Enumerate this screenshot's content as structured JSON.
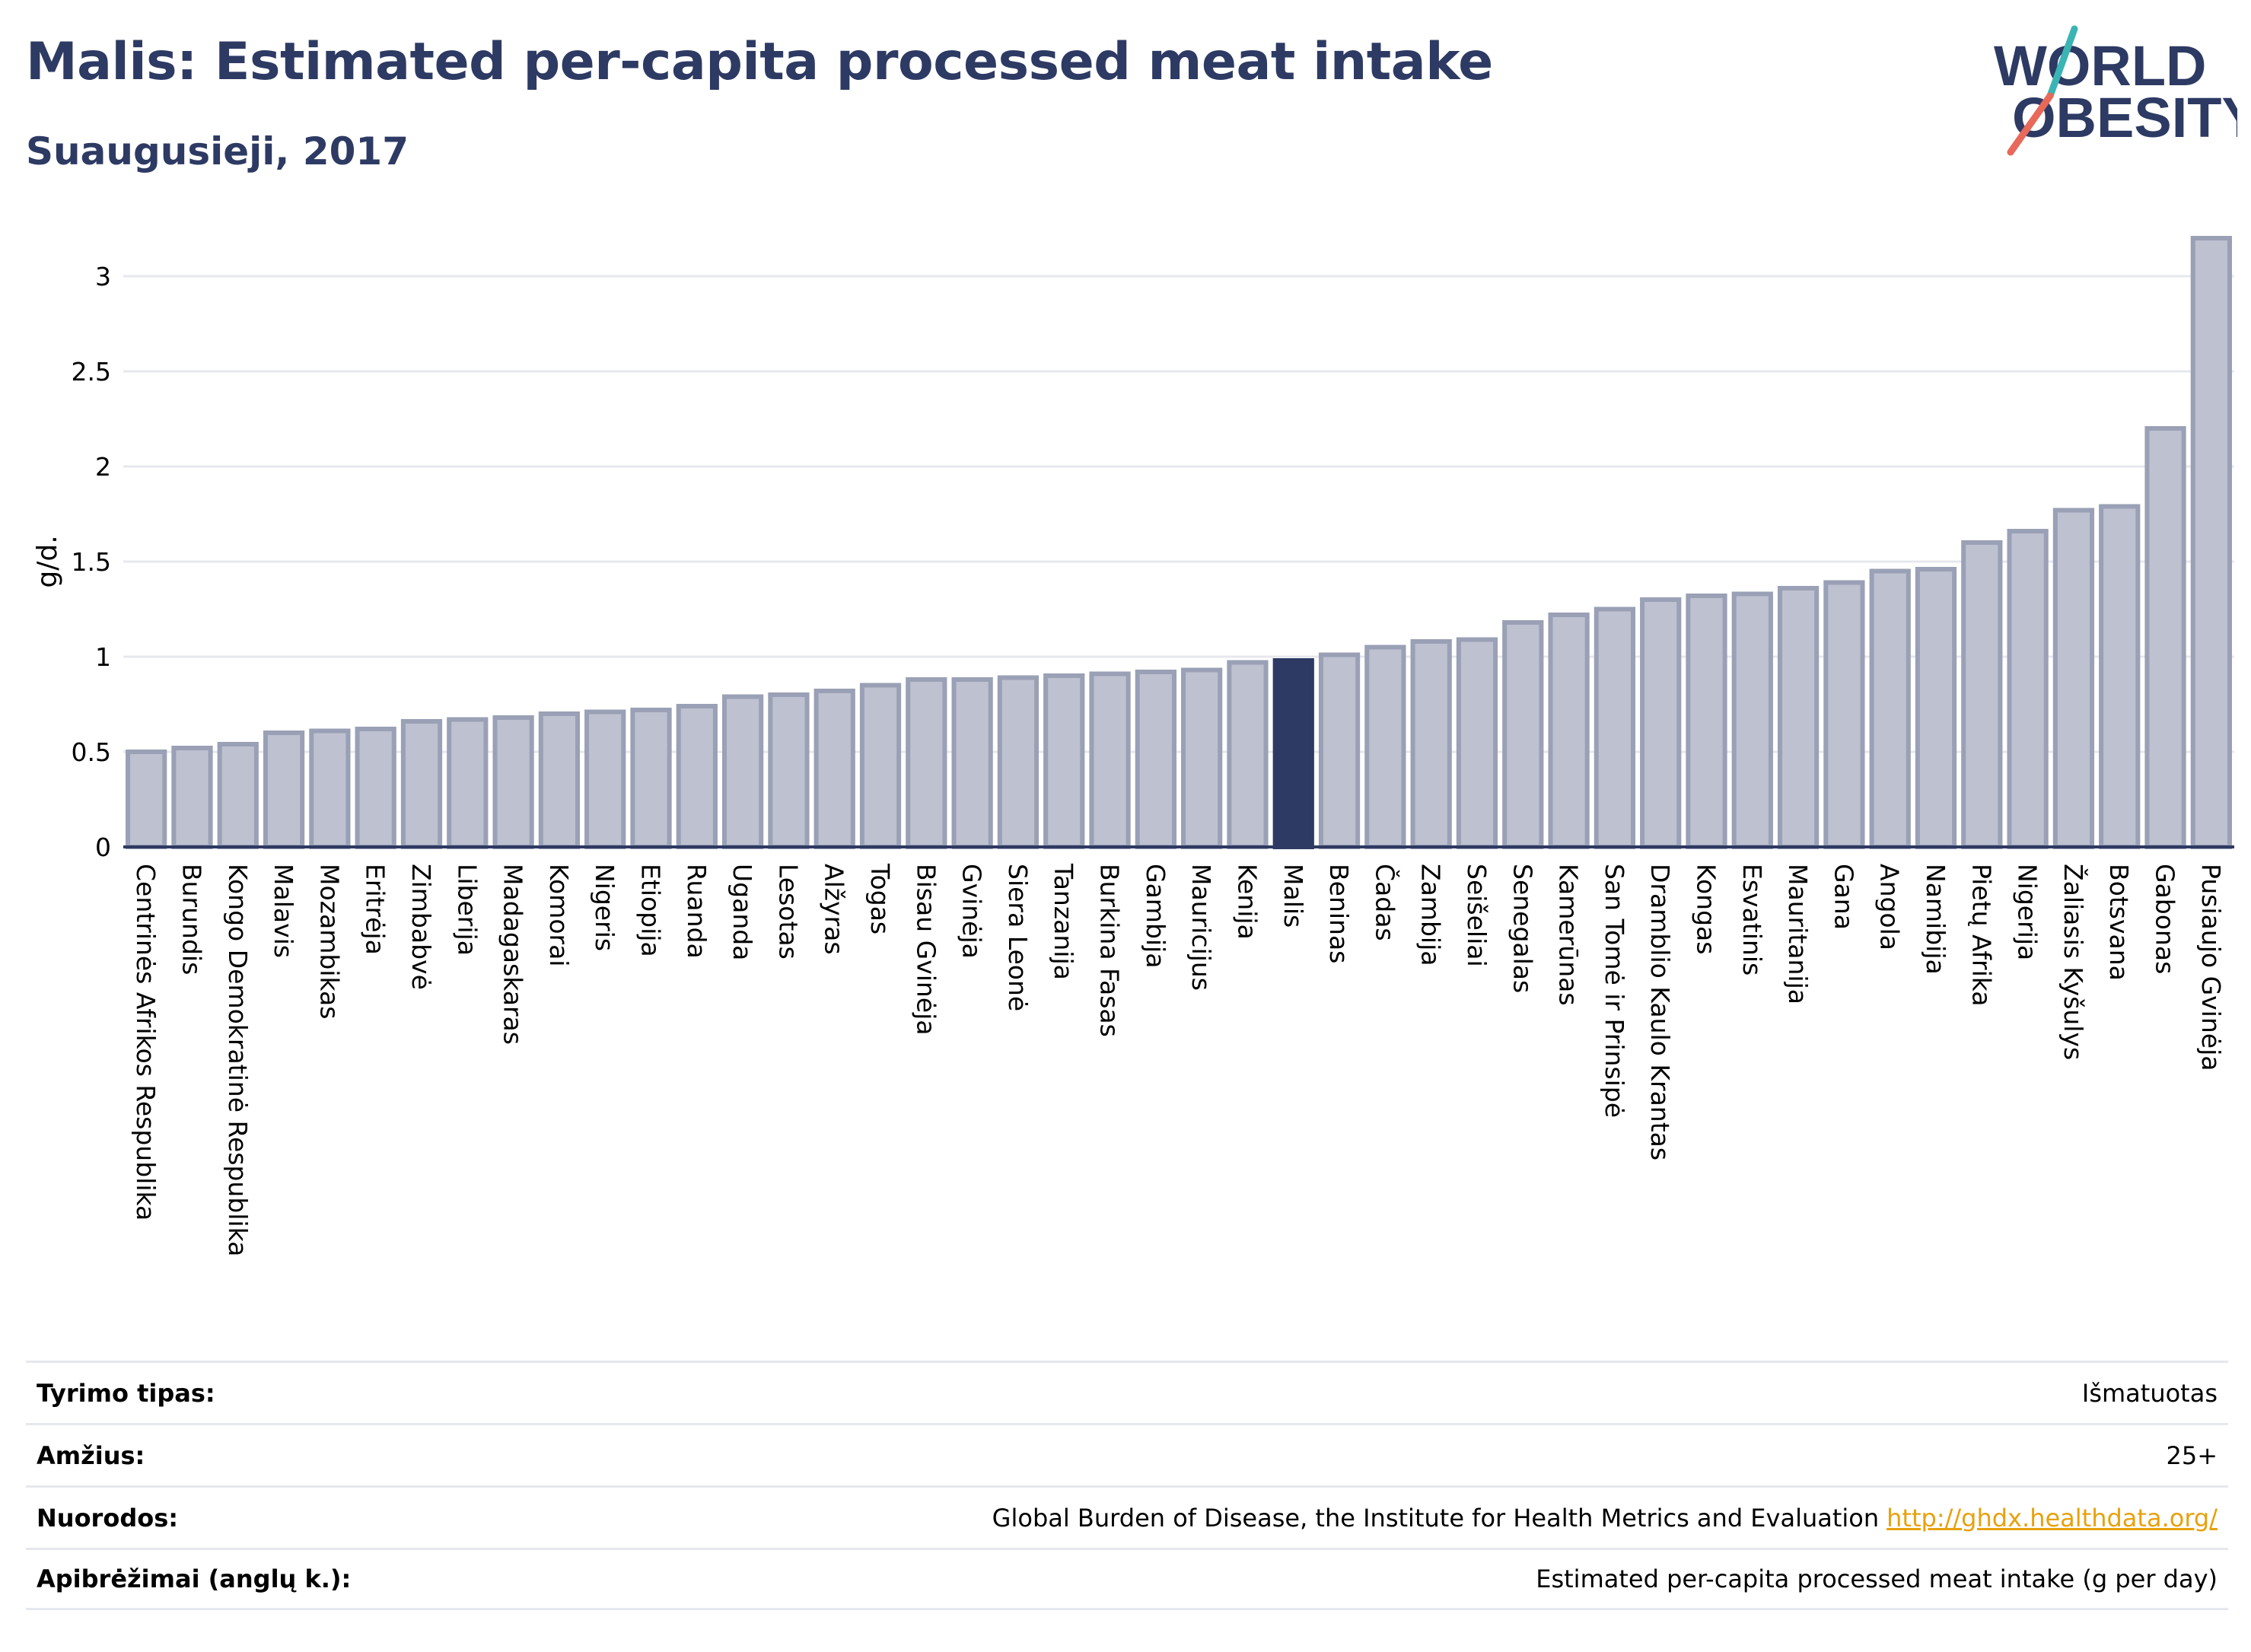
{
  "header": {
    "title": "Malis: Estimated per-capita processed meat intake",
    "subtitle": "Suaugusieji, 2017"
  },
  "logo": {
    "line1": "WORLD",
    "line2": "OBESITY",
    "accent_teal": "#3bb4b4",
    "accent_red": "#e8685a",
    "text_color": "#2d3a63"
  },
  "colors": {
    "bar": "#bdc1d0",
    "bar_border": "#9aa0b5",
    "highlight": "#2d3a63",
    "grid": "#e6e8ee",
    "text": "#2d3a63"
  },
  "chart_data": {
    "type": "bar",
    "ylabel": "g/d.",
    "ylim": [
      0,
      3.3
    ],
    "yticks": [
      0,
      0.5,
      1,
      1.5,
      2,
      2.5,
      3
    ],
    "ytick_labels": [
      "0",
      "0.5",
      "1",
      "1.5",
      "2",
      "2.5",
      "3"
    ],
    "highlight": "Malis",
    "categories": [
      "Centrinės Afrikos Respublika",
      "Burundis",
      "Kongo Demokratinė Respublika",
      "Malavis",
      "Mozambikas",
      "Eritrėja",
      "Zimbabvė",
      "Liberija",
      "Madagaskaras",
      "Komorai",
      "Nigeris",
      "Etiopija",
      "Ruanda",
      "Uganda",
      "Lesotas",
      "Alžyras",
      "Togas",
      "Bisau Gvinėja",
      "Gvinėja",
      "Siera Leonė",
      "Tanzanija",
      "Burkina Fasas",
      "Gambija",
      "Mauricijus",
      "Kenija",
      "Malis",
      "Beninas",
      "Čadas",
      "Zambija",
      "Seišeliai",
      "Senegalas",
      "Kamerūnas",
      "San Tomė ir Prinsipė",
      "Dramblio Kaulo Krantas",
      "Kongas",
      "Esvatinis",
      "Mauritanija",
      "Gana",
      "Angola",
      "Namibija",
      "Pietų Afrika",
      "Nigerija",
      "Žaliasis Kyšulys",
      "Botsvana",
      "Gabonas",
      "Pusiaujo Gvinėja"
    ],
    "values": [
      0.5,
      0.52,
      0.54,
      0.6,
      0.61,
      0.62,
      0.66,
      0.67,
      0.68,
      0.7,
      0.71,
      0.72,
      0.74,
      0.79,
      0.8,
      0.82,
      0.85,
      0.88,
      0.88,
      0.89,
      0.9,
      0.91,
      0.92,
      0.93,
      0.97,
      0.98,
      1.01,
      1.05,
      1.08,
      1.09,
      1.18,
      1.22,
      1.25,
      1.3,
      1.32,
      1.33,
      1.36,
      1.39,
      1.45,
      1.46,
      1.6,
      1.66,
      1.77,
      1.79,
      2.2,
      3.2
    ]
  },
  "info": [
    {
      "key": "Tyrimo tipas:",
      "value": "Išmatuotas"
    },
    {
      "key": "Amžius:",
      "value": "25+"
    },
    {
      "key": "Nuorodos:",
      "value": "Global Burden of Disease, the Institute for Health Metrics and Evaluation",
      "link": "http://ghdx.healthdata.org/"
    },
    {
      "key": "Apibrėžimai (anglų k.):",
      "value": "Estimated per-capita processed meat intake (g per day)"
    }
  ]
}
